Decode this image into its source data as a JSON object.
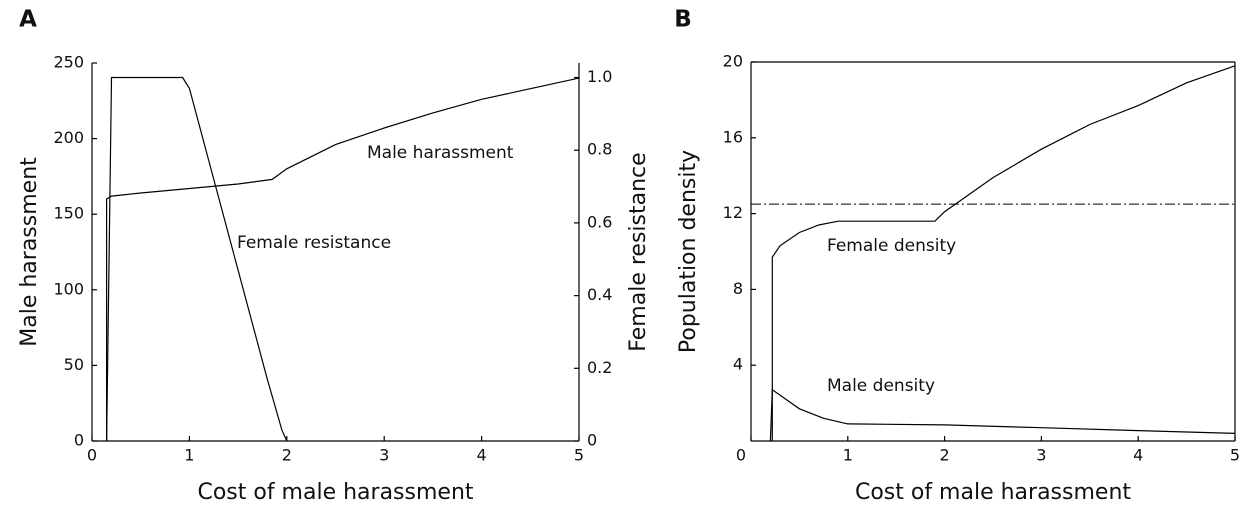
{
  "chart_data": [
    {
      "type": "line",
      "label": "A",
      "xlabel": "Cost of male harassment",
      "ylabel": "Male harassment",
      "y2label": "Female resistance",
      "xlim": [
        0,
        5
      ],
      "xticks": [
        0,
        1,
        2,
        3,
        4,
        5
      ],
      "ylim": [
        0,
        250
      ],
      "yticks": [
        0,
        50,
        100,
        150,
        200,
        250
      ],
      "y2lim": [
        0,
        1.04
      ],
      "y2ticks": [
        0,
        0.2,
        0.4,
        0.6,
        0.8,
        {
          "value": 1,
          "label": "1.0"
        }
      ],
      "box": false,
      "series": [
        {
          "color": "#000000",
          "x": [
            0.15,
            0.15,
            0.2,
            0.5,
            1.0,
            1.5,
            1.85,
            2.0,
            2.5,
            3,
            3.5,
            4,
            4.5,
            5
          ],
          "values": [
            0,
            160,
            162,
            164,
            167,
            170,
            173,
            180,
            196,
            207,
            217,
            226,
            233,
            240
          ]
        },
        {
          "color": "#000000",
          "axis": "y2",
          "x": [
            0.15,
            0.2,
            0.93,
            1.0,
            1.2,
            1.5,
            1.8,
            1.95,
            2.0
          ],
          "values": [
            0,
            1.0,
            1.0,
            0.97,
            0.77,
            0.47,
            0.17,
            0.03,
            0
          ]
        }
      ],
      "annotations": [
        "Male harassment",
        "Female resistance"
      ]
    },
    {
      "type": "line",
      "label": "B",
      "xlabel": "Cost of male harassment",
      "ylabel": "Population density",
      "xlim": [
        0,
        5
      ],
      "xticks": [
        0,
        1,
        2,
        3,
        4,
        5
      ],
      "ylim": [
        0,
        20
      ],
      "yticks": [
        4,
        8,
        12,
        16,
        20
      ],
      "box": true,
      "reference_line": 12.5,
      "series": [
        {
          "color": "#000000",
          "x": [
            0.22,
            0.22,
            0.3,
            0.5,
            0.7,
            0.9,
            1.9,
            2.0,
            2.5,
            3,
            3.5,
            4,
            4.5,
            5
          ],
          "values": [
            0,
            9.7,
            10.3,
            11.0,
            11.4,
            11.6,
            11.6,
            12.1,
            13.9,
            15.4,
            16.7,
            17.7,
            18.9,
            19.8
          ]
        },
        {
          "color": "#000000",
          "x": [
            0.2,
            0.22,
            0.25,
            0.5,
            0.75,
            1,
            2,
            3,
            4,
            5
          ],
          "values": [
            0,
            2.7,
            2.6,
            1.7,
            1.2,
            0.9,
            0.85,
            0.7,
            0.55,
            0.4
          ]
        }
      ],
      "annotations": [
        "Female density",
        "Male density"
      ]
    }
  ]
}
